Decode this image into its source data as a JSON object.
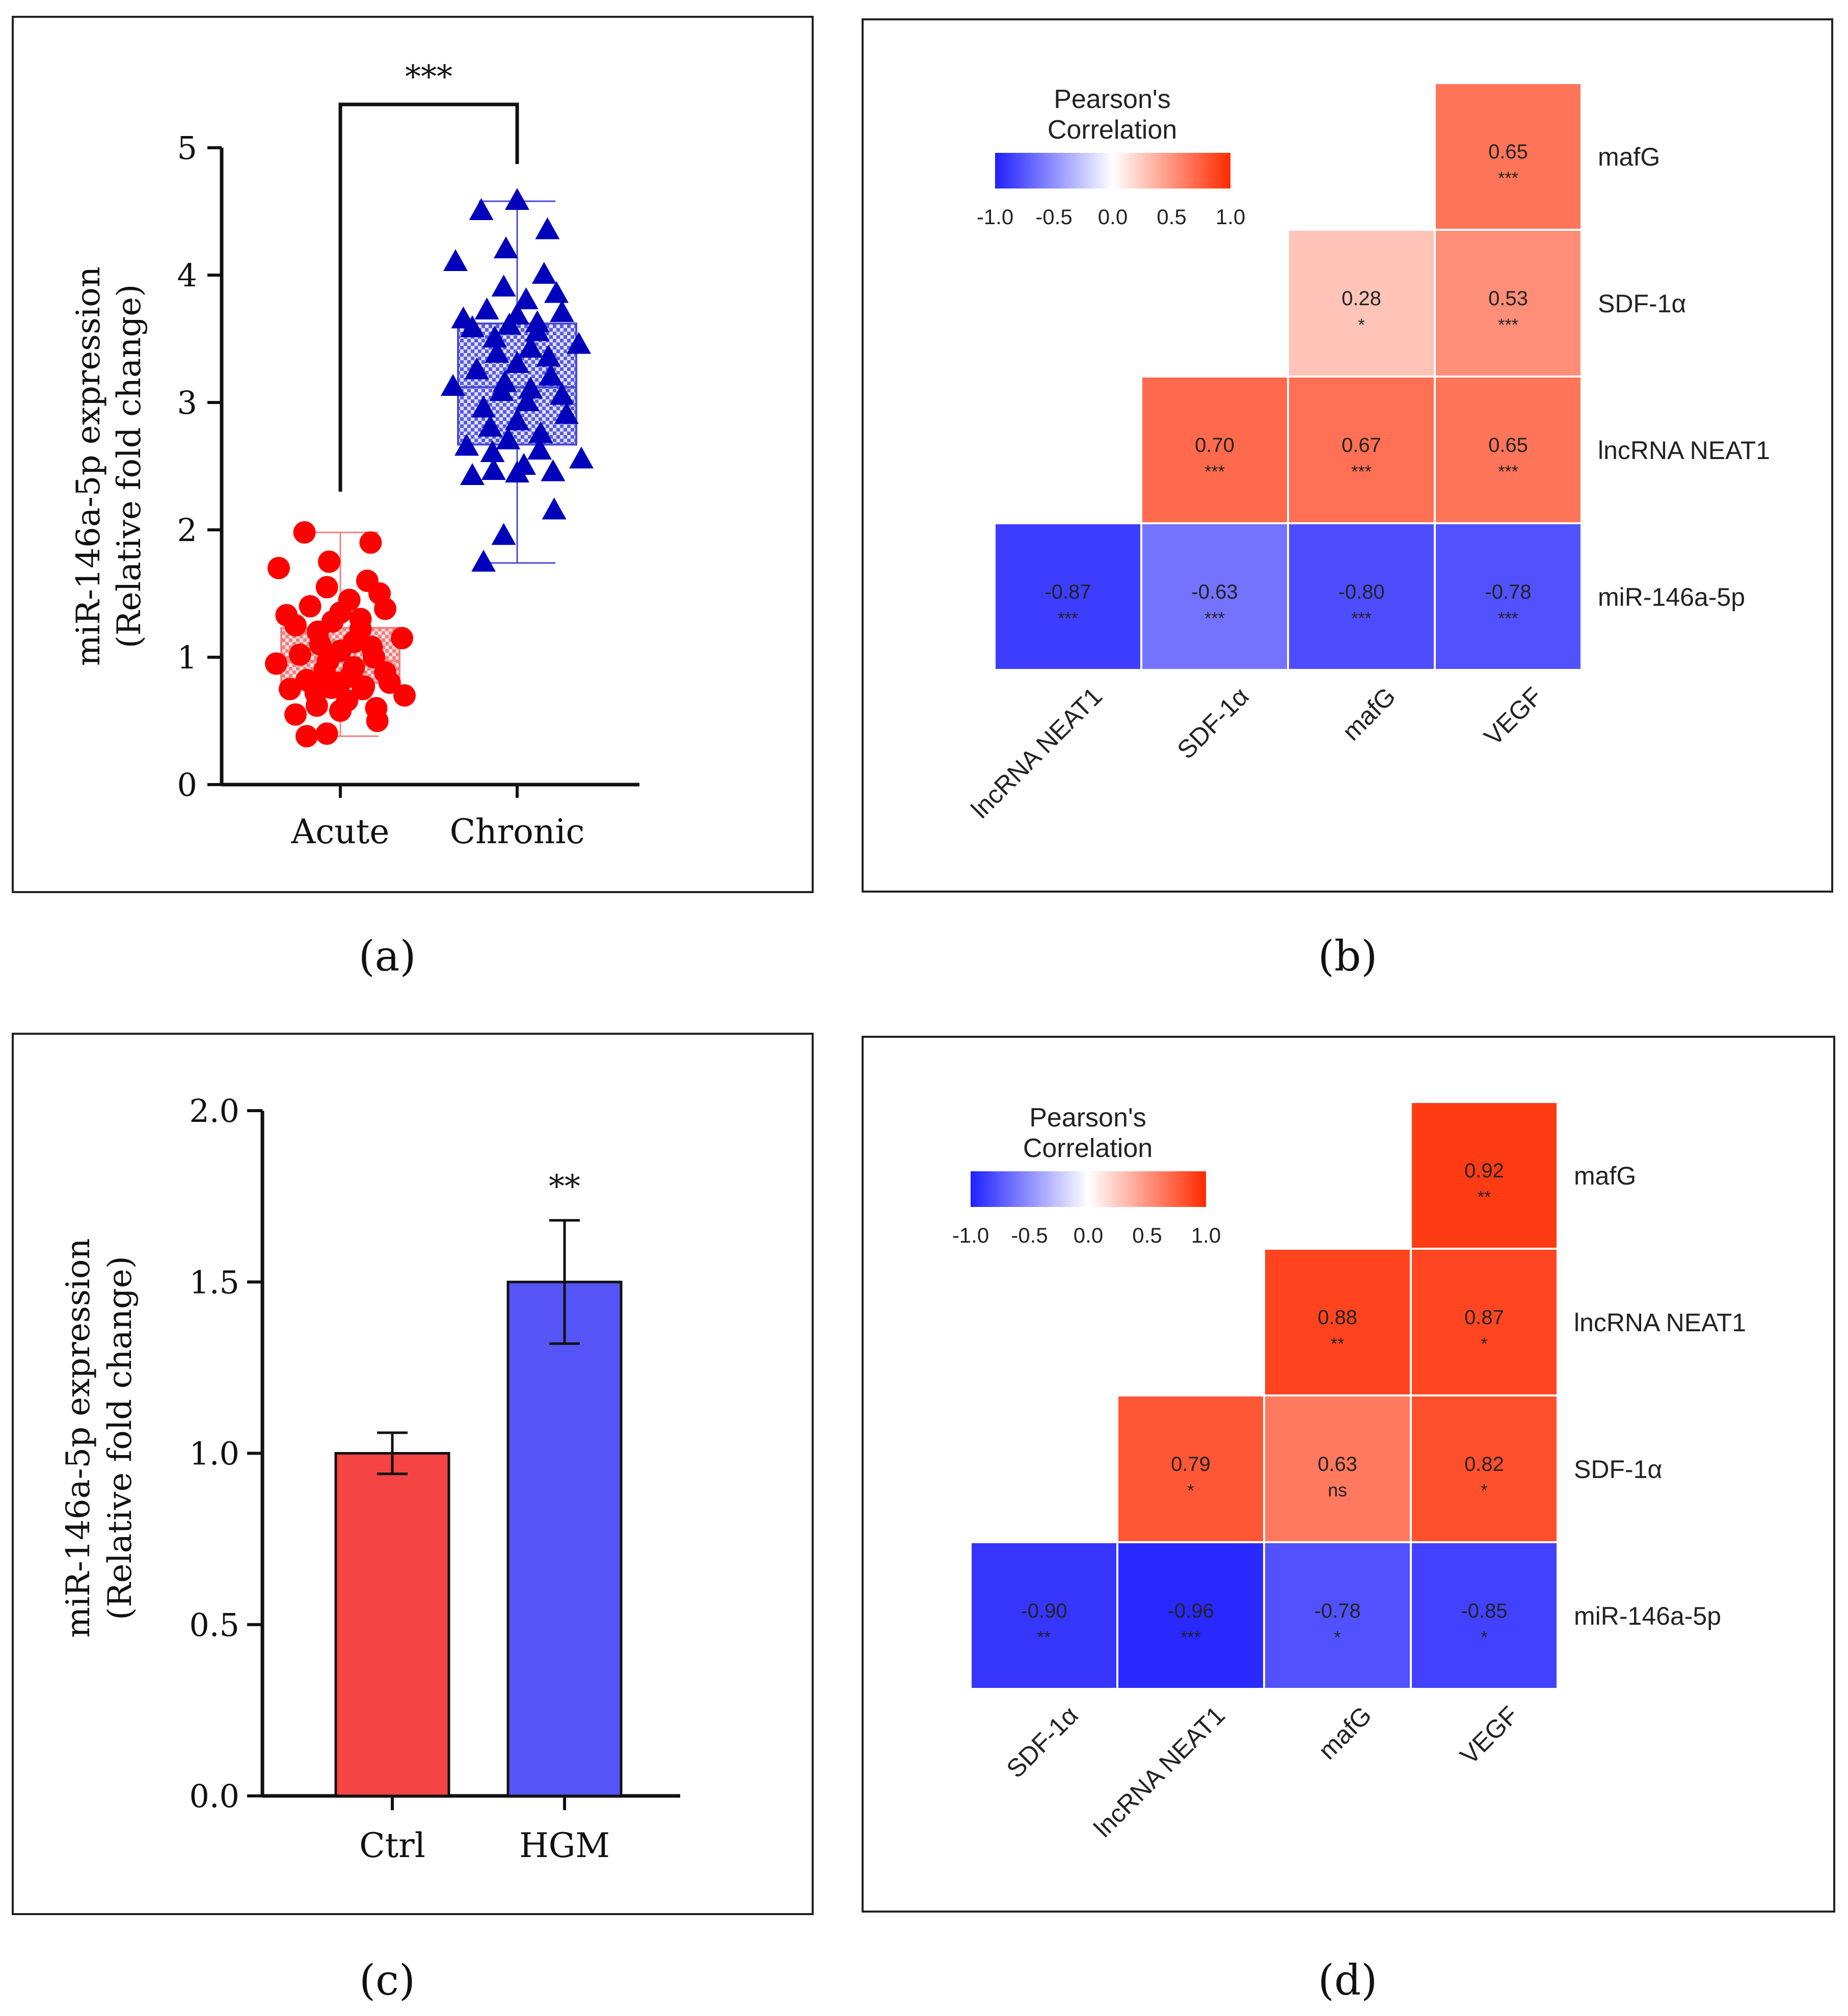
{
  "panel_labels": {
    "a": "(a)",
    "b": "(b)",
    "c": "(c)",
    "d": "(d)"
  },
  "chart_data": [
    {
      "id": "a",
      "type": "box",
      "ylabel_line1": "miR-146a-5p expression",
      "ylabel_line2": "(Relative fold change)",
      "ylim": [
        0,
        5
      ],
      "yticks": [
        "0",
        "1",
        "2",
        "3",
        "4",
        "5"
      ],
      "categories": [
        "Acute",
        "Chronic"
      ],
      "significance": "***",
      "colors": {
        "Acute": "#ff0000",
        "Chronic": "#0000bb"
      },
      "boxes": [
        {
          "name": "Acute",
          "min": 0.38,
          "q1": 0.8,
          "median": 0.97,
          "q3": 1.23,
          "max": 1.98,
          "points": [
            0.38,
            0.4,
            0.5,
            0.55,
            0.58,
            0.6,
            0.62,
            0.66,
            0.7,
            0.72,
            0.75,
            0.75,
            0.76,
            0.77,
            0.78,
            0.8,
            0.8,
            0.82,
            0.85,
            0.88,
            0.9,
            0.92,
            0.95,
            0.97,
            1.0,
            1.02,
            1.05,
            1.08,
            1.1,
            1.12,
            1.15,
            1.2,
            1.22,
            1.25,
            1.28,
            1.3,
            1.33,
            1.35,
            1.38,
            1.4,
            1.45,
            1.5,
            1.55,
            1.6,
            1.7,
            1.75,
            1.9,
            1.98
          ]
        },
        {
          "name": "Chronic",
          "min": 1.74,
          "q1": 2.67,
          "median": 3.12,
          "q3": 3.62,
          "max": 4.58,
          "points": [
            1.74,
            1.95,
            2.15,
            2.42,
            2.44,
            2.45,
            2.46,
            2.5,
            2.55,
            2.6,
            2.62,
            2.65,
            2.7,
            2.75,
            2.8,
            2.85,
            2.9,
            2.95,
            3.0,
            3.05,
            3.08,
            3.1,
            3.12,
            3.15,
            3.2,
            3.25,
            3.3,
            3.35,
            3.38,
            3.42,
            3.45,
            3.5,
            3.55,
            3.58,
            3.6,
            3.62,
            3.65,
            3.68,
            3.7,
            3.72,
            3.8,
            3.85,
            3.9,
            4.0,
            4.1,
            4.2,
            4.35,
            4.5,
            4.58
          ]
        }
      ]
    },
    {
      "id": "b",
      "type": "heatmap",
      "legend_title_line1": "Pearson's",
      "legend_title_line2": "Correlation",
      "legend_ticks": [
        "-1.0",
        "-0.5",
        "0.0",
        "0.5",
        "1.0"
      ],
      "columns": [
        "lncRNA NEAT1",
        "SDF-1α",
        "mafG",
        "VEGF"
      ],
      "rows": [
        "mafG",
        "SDF-1α",
        "lncRNA NEAT1",
        "miR-146a-5p"
      ],
      "cells": [
        [
          null,
          null,
          null,
          {
            "v": 0.65,
            "label": "0.65",
            "sig": "***"
          }
        ],
        [
          null,
          null,
          {
            "v": 0.28,
            "label": "0.28",
            "sig": "*"
          },
          {
            "v": 0.53,
            "label": "0.53",
            "sig": "***"
          }
        ],
        [
          null,
          {
            "v": 0.7,
            "label": "0.70",
            "sig": "***"
          },
          {
            "v": 0.67,
            "label": "0.67",
            "sig": "***"
          },
          {
            "v": 0.65,
            "label": "0.65",
            "sig": "***"
          }
        ],
        [
          {
            "v": -0.87,
            "label": "-0.87",
            "sig": "***"
          },
          {
            "v": -0.63,
            "label": "-0.63",
            "sig": "***"
          },
          {
            "v": -0.8,
            "label": "-0.80",
            "sig": "***"
          },
          {
            "v": -0.78,
            "label": "-0.78",
            "sig": "***"
          }
        ]
      ]
    },
    {
      "id": "c",
      "type": "bar",
      "ylabel_line1": "miR-146a-5p expression",
      "ylabel_line2": "(Relative fold change)",
      "ylim": [
        0,
        2
      ],
      "yticks": [
        "0.0",
        "0.5",
        "1.0",
        "1.5",
        "2.0"
      ],
      "categories": [
        "Ctrl",
        "HGM"
      ],
      "values": [
        1.0,
        1.5
      ],
      "errors": [
        0.06,
        0.18
      ],
      "colors": [
        "#f44444",
        "#5555f8"
      ],
      "significance": [
        "",
        "**"
      ]
    },
    {
      "id": "d",
      "type": "heatmap",
      "legend_title_line1": "Pearson's",
      "legend_title_line2": "Correlation",
      "legend_ticks": [
        "-1.0",
        "-0.5",
        "0.0",
        "0.5",
        "1.0"
      ],
      "columns": [
        "SDF-1α",
        "lncRNA NEAT1",
        "mafG",
        "VEGF"
      ],
      "rows": [
        "mafG",
        "lncRNA NEAT1",
        "SDF-1α",
        "miR-146a-5p"
      ],
      "cells": [
        [
          null,
          null,
          null,
          {
            "v": 0.92,
            "label": "0.92",
            "sig": "**"
          }
        ],
        [
          null,
          null,
          {
            "v": 0.88,
            "label": "0.88",
            "sig": "**"
          },
          {
            "v": 0.87,
            "label": "0.87",
            "sig": "*"
          }
        ],
        [
          null,
          {
            "v": 0.79,
            "label": "0.79",
            "sig": "*"
          },
          {
            "v": 0.63,
            "label": "0.63",
            "sig": "ns"
          },
          {
            "v": 0.82,
            "label": "0.82",
            "sig": "*"
          }
        ],
        [
          {
            "v": -0.9,
            "label": "-0.90",
            "sig": "**"
          },
          {
            "v": -0.96,
            "label": "-0.96",
            "sig": "***"
          },
          {
            "v": -0.78,
            "label": "-0.78",
            "sig": "*"
          },
          {
            "v": -0.85,
            "label": "-0.85",
            "sig": "*"
          }
        ]
      ]
    }
  ]
}
